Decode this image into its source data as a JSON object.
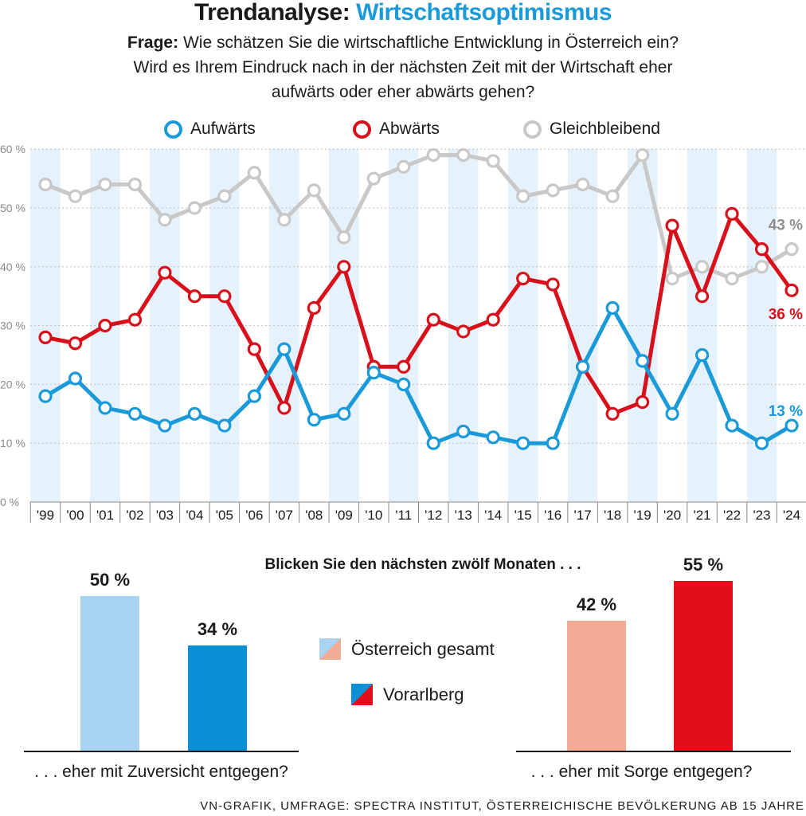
{
  "header": {
    "title_prefix": "Trendanalyse:",
    "title_accent": "Wirtschaftsoptimismus",
    "question_label": "Frage:",
    "question_line1": "Wie schätzen Sie die wirtschaftliche Entwicklung in Österreich ein?",
    "question_line2": "Wird es Ihrem Eindruck nach in der nächsten Zeit mit der Wirtschaft eher",
    "question_line3": "aufwärts oder eher abwärts gehen?"
  },
  "legend": {
    "up": "Aufwärts",
    "down": "Abwärts",
    "same": "Gleichbleibend"
  },
  "colors": {
    "up": "#1a9ad9",
    "down": "#d7101c",
    "same": "#c8c8c8",
    "stripe": "#e6f2fb",
    "light_blue": "#a8d4f2",
    "blue": "#0a8fd6",
    "salmon": "#f2ab94",
    "red": "#e30d1b"
  },
  "chart_data": [
    {
      "type": "line",
      "title": "Trendanalyse: Wirtschaftsoptimismus",
      "categories": [
        "'99",
        "'00",
        "'01",
        "'02",
        "'03",
        "'04",
        "'05",
        "'06",
        "'07",
        "'08",
        "'09",
        "'10",
        "'11",
        "'12",
        "'13",
        "'14",
        "'15",
        "'16",
        "'17",
        "'18",
        "'19",
        "'20",
        "'21",
        "'22",
        "'23",
        "'24"
      ],
      "series": [
        {
          "name": "Aufwärts",
          "values": [
            18,
            21,
            16,
            15,
            13,
            15,
            13,
            18,
            26,
            14,
            15,
            22,
            20,
            10,
            12,
            11,
            10,
            10,
            23,
            33,
            24,
            15,
            25,
            13,
            10,
            13
          ],
          "end_label": "13 %"
        },
        {
          "name": "Abwärts",
          "values": [
            28,
            27,
            30,
            31,
            39,
            35,
            35,
            26,
            16,
            33,
            40,
            23,
            23,
            31,
            29,
            31,
            38,
            37,
            23,
            15,
            17,
            47,
            35,
            49,
            43,
            36
          ],
          "end_label": "36 %"
        },
        {
          "name": "Gleichbleibend",
          "values": [
            54,
            52,
            54,
            54,
            48,
            50,
            52,
            56,
            48,
            53,
            45,
            55,
            57,
            59,
            59,
            58,
            52,
            53,
            54,
            52,
            59,
            38,
            40,
            38,
            40,
            43
          ],
          "end_label": "43 %"
        }
      ],
      "y_ticks": [
        "0 %",
        "10 %",
        "20 %",
        "30 %",
        "40 %",
        "50 %",
        "60 %"
      ],
      "ylim": [
        0,
        60
      ],
      "grid": true
    },
    {
      "type": "bar",
      "title": "Blicken Sie den nächsten zwölf Monaten . . .",
      "categories": [
        ". . . eher mit Zuversicht entgegen?",
        ". . . eher mit Sorge entgegen?"
      ],
      "series": [
        {
          "name": "Österreich gesamt",
          "values": [
            50,
            42
          ],
          "labels": [
            "50 %",
            "42 %"
          ]
        },
        {
          "name": "Vorarlberg",
          "values": [
            34,
            55
          ],
          "labels": [
            "34 %",
            "55 %"
          ]
        }
      ]
    }
  ],
  "source": "VN-GRAFIK, UMFRAGE: SPECTRA INSTITUT, ÖSTERREICHISCHE BEVÖLKERUNG AB 15 JAHRE"
}
